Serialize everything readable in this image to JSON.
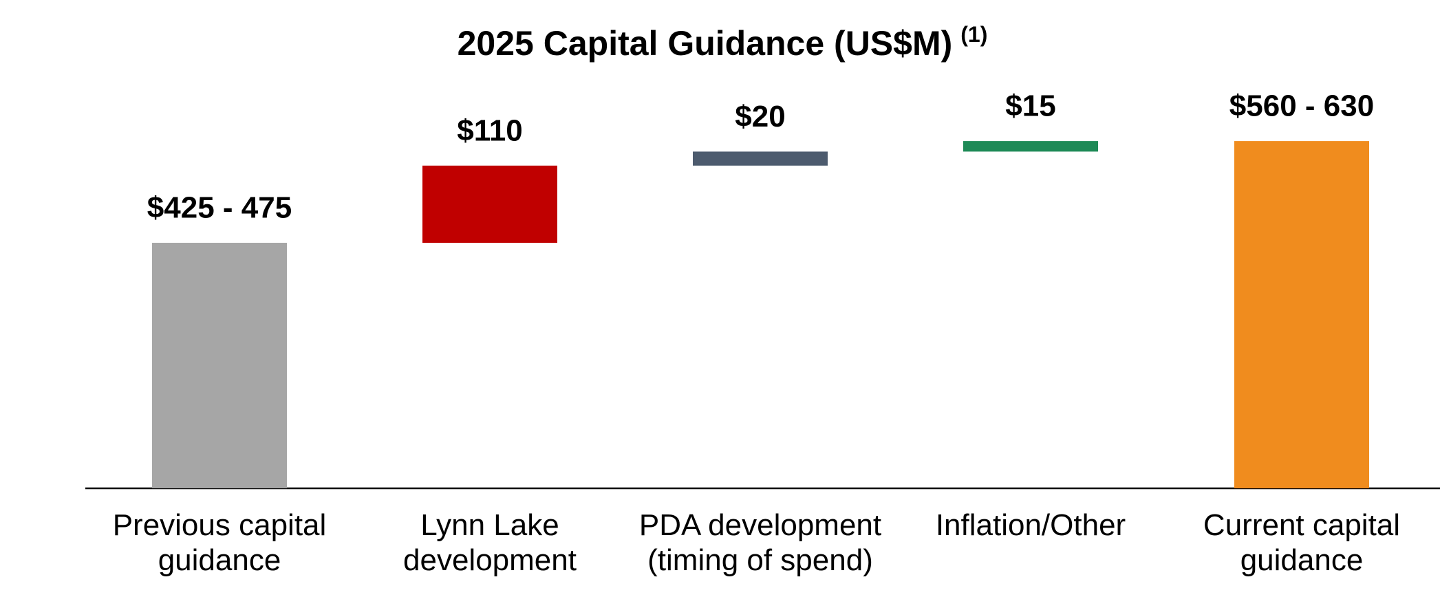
{
  "chart_data": {
    "type": "waterfall",
    "title": "2025 Capital Guidance (US$M)",
    "title_note": "(1)",
    "categories": [
      [
        "Previous capital",
        "guidance"
      ],
      [
        "Lynn Lake",
        "development"
      ],
      [
        "PDA development",
        "(timing of spend)"
      ],
      [
        "Inflation/Other"
      ],
      [
        "Current capital",
        "guidance"
      ]
    ],
    "values": [
      450,
      110,
      20,
      15,
      595
    ],
    "value_labels": [
      "$425 - 475",
      "$110",
      "$20",
      "$15",
      "$560 - 630"
    ],
    "measure": [
      "total",
      "relative",
      "relative",
      "relative",
      "total"
    ],
    "colors": [
      "#a6a6a6",
      "#c00000",
      "#4d5b6e",
      "#1e8a57",
      "#f08c1e"
    ],
    "ylim": [
      100,
      700
    ]
  }
}
